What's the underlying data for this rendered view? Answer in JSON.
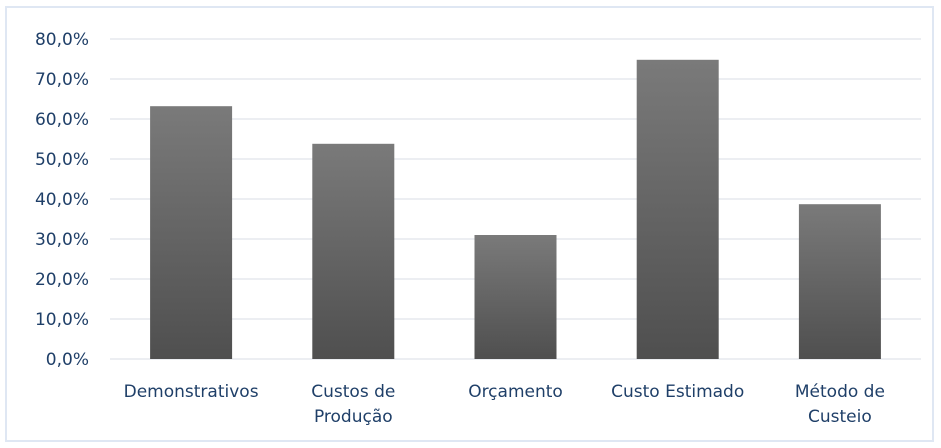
{
  "chart_data": {
    "type": "bar",
    "categories": [
      "Demonstrativos",
      "Custos de Produção",
      "Orçamento",
      "Custo Estimado",
      "Método de Custeio"
    ],
    "category_lines": [
      [
        "Demonstrativos"
      ],
      [
        "Custos de",
        "Produção"
      ],
      [
        "Orçamento"
      ],
      [
        "Custo Estimado"
      ],
      [
        "Método de",
        "Custeio"
      ]
    ],
    "values": [
      63.2,
      53.8,
      31.0,
      74.8,
      38.7
    ],
    "ylim": [
      0,
      80
    ],
    "yticks": [
      0,
      10,
      20,
      30,
      40,
      50,
      60,
      70,
      80
    ],
    "ytick_labels": [
      "0,0%",
      "10,0%",
      "20,0%",
      "30,0%",
      "40,0%",
      "50,0%",
      "60,0%",
      "70,0%",
      "80,0%"
    ],
    "title": "",
    "xlabel": "",
    "ylabel": "",
    "grid": true,
    "legend": "none",
    "colors": {
      "bar_top": "#7a7a7a",
      "bar_bottom": "#4f4f4f",
      "grid": "#d9dde4",
      "text": "#1f3f68",
      "frame": "#dfe7f3"
    }
  }
}
